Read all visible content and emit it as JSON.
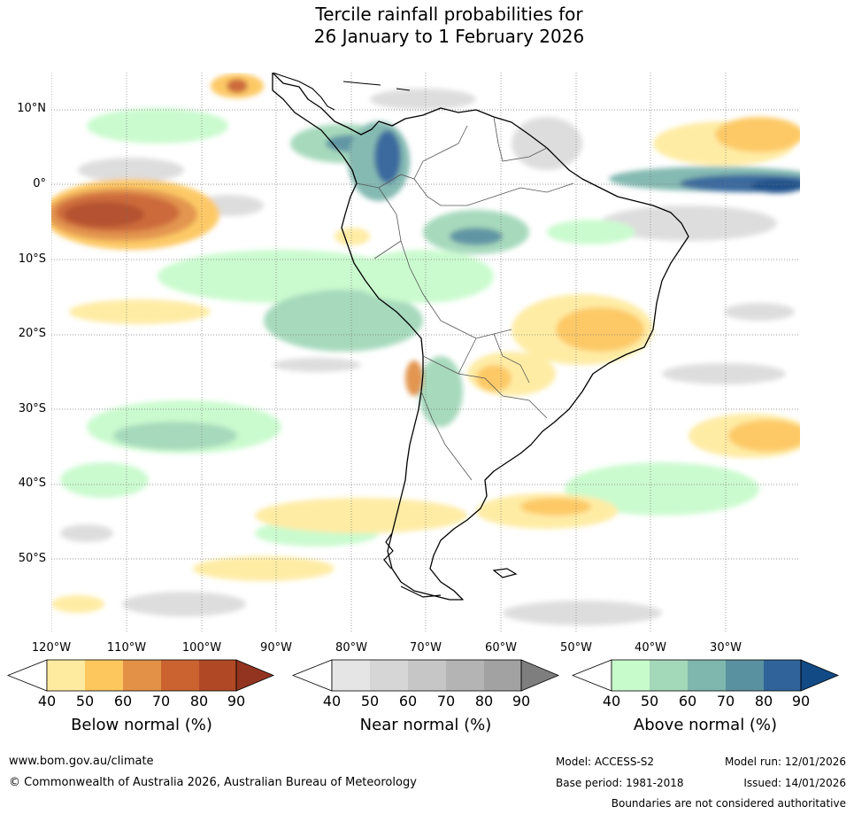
{
  "title_line1": "Tercile rainfall probabilities for",
  "title_line2": "26 January to 1 February 2026",
  "latitude_labels": [
    "10°N",
    "0°",
    "10°S",
    "20°S",
    "30°S",
    "40°S",
    "50°S"
  ],
  "longitude_labels": [
    "120°W",
    "110°W",
    "100°W",
    "90°W",
    "80°W",
    "70°W",
    "60°W",
    "50°W",
    "40°W",
    "30°W"
  ],
  "colorbars": [
    {
      "name": "below",
      "label": "Below normal (%)",
      "ticks": [
        "40",
        "50",
        "60",
        "70",
        "80",
        "90"
      ],
      "colors": [
        "#ffeba0",
        "#fdc75e",
        "#e29146",
        "#cb6331",
        "#b04826"
      ],
      "extend_color": "#933420"
    },
    {
      "name": "near",
      "label": "Near normal (%)",
      "ticks": [
        "40",
        "50",
        "60",
        "70",
        "80",
        "90"
      ],
      "colors": [
        "#e5e5e5",
        "#d6d6d6",
        "#c6c6c6",
        "#b4b4b4",
        "#a2a2a2"
      ],
      "extend_color": "#7e7e7e"
    },
    {
      "name": "above",
      "label": "Above normal (%)",
      "ticks": [
        "40",
        "50",
        "60",
        "70",
        "80",
        "90"
      ],
      "colors": [
        "#c8fbcc",
        "#a3d8b9",
        "#7fb7af",
        "#5991a0",
        "#30639a"
      ],
      "extend_color": "#124a85"
    }
  ],
  "footer": {
    "website": "www.bom.gov.au/climate",
    "copyright": "© Commonwealth of Australia 2026, Australian Bureau of Meteorology",
    "model": "Model: ACCESS-S2",
    "base_period": "Base period: 1981-2018",
    "model_run": "Model run: 12/01/2026",
    "issued": "Issued: 14/01/2026",
    "disclaimer": "Boundaries are not considered authoritative"
  }
}
